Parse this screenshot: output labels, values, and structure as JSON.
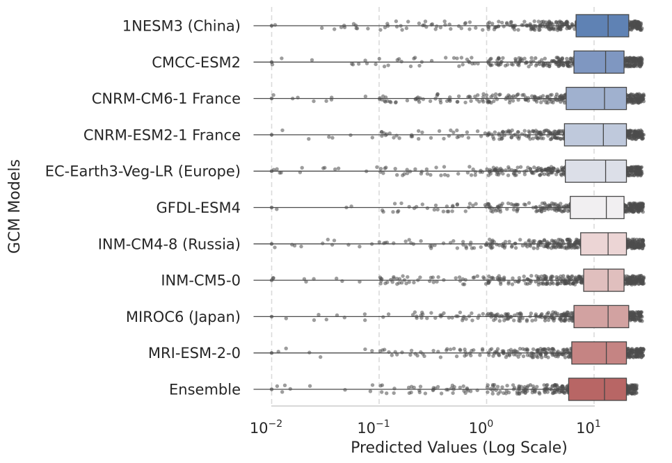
{
  "chart_data": {
    "type": "box",
    "orientation": "horizontal",
    "title": "",
    "xlabel": "Predicted Values (Log Scale)",
    "ylabel": "GCM Models",
    "xscale": "log",
    "xlim": [
      0.007,
      30
    ],
    "xticks": [
      {
        "value": 0.01,
        "base": "10",
        "exp": "−2"
      },
      {
        "value": 0.1,
        "base": "10",
        "exp": "−1"
      },
      {
        "value": 1,
        "base": "10",
        "exp": "0"
      },
      {
        "value": 10,
        "base": "10",
        "exp": "1"
      }
    ],
    "grid": "x-dashed",
    "legend": "none",
    "overlay": "jittered strip points (#4d4d4d, semi-transparent)",
    "categories": [
      "1NESM3 (China)",
      "CMCC-ESM2",
      "CNRM-CM6-1 France",
      "CNRM-ESM2-1 France",
      "EC-Earth3-Veg-LR (Europe)",
      "GFDL-ESM4",
      "INM-CM4-8 (Russia)",
      "INM-CM5-0",
      "MIROC6 (Japan)",
      "MRI-ESM-2-0",
      "Ensemble"
    ],
    "boxes": [
      {
        "min": 0.01,
        "q1": 6.8,
        "median": 13.5,
        "q3": 21,
        "max": 28,
        "color": "#5f82b4"
      },
      {
        "min": 0.01,
        "q1": 6.5,
        "median": 12.8,
        "q3": 19,
        "max": 28,
        "color": "#7f97c1"
      },
      {
        "min": 0.01,
        "q1": 5.5,
        "median": 12.5,
        "q3": 20,
        "max": 29,
        "color": "#a0b1cf"
      },
      {
        "min": 0.01,
        "q1": 5.3,
        "median": 12.2,
        "q3": 20,
        "max": 29,
        "color": "#bfc9dc"
      },
      {
        "min": 0.01,
        "q1": 5.4,
        "median": 12.8,
        "q3": 20,
        "max": 28,
        "color": "#dcdfe8"
      },
      {
        "min": 0.01,
        "q1": 6.0,
        "median": 13.0,
        "q3": 19,
        "max": 29,
        "color": "#f1eff1"
      },
      {
        "min": 0.01,
        "q1": 7.5,
        "median": 13.5,
        "q3": 20,
        "max": 29,
        "color": "#ecd5d5"
      },
      {
        "min": 0.01,
        "q1": 8.0,
        "median": 13.5,
        "q3": 19,
        "max": 29,
        "color": "#e0bfbe"
      },
      {
        "min": 0.01,
        "q1": 6.5,
        "median": 13.5,
        "q3": 21,
        "max": 28,
        "color": "#d2a2a1"
      },
      {
        "min": 0.01,
        "q1": 6.2,
        "median": 13.0,
        "q3": 20,
        "max": 29,
        "color": "#c58483"
      },
      {
        "min": 0.01,
        "q1": 5.8,
        "median": 12.5,
        "q3": 20,
        "max": 25,
        "color": "#b86665"
      }
    ]
  }
}
